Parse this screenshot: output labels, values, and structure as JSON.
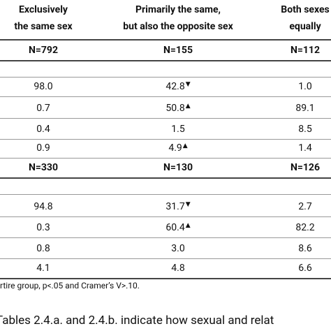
{
  "table": {
    "header": [
      [
        "Exclusively",
        "the same sex"
      ],
      [
        "Primarily the same,",
        "but also the opposite sex"
      ],
      [
        "Both sexes",
        "equally"
      ]
    ],
    "groups": [
      {
        "n": [
          "N=792",
          "N=155",
          "N=112"
        ],
        "rows": [
          [
            {
              "value": "98.0"
            },
            {
              "value": "42.8",
              "marker": "▼"
            },
            {
              "value": "1.0"
            }
          ],
          [
            {
              "value": "0.7"
            },
            {
              "value": "50.8",
              "marker": "▲"
            },
            {
              "value": "89.1"
            }
          ],
          [
            {
              "value": "0.4"
            },
            {
              "value": "1.5"
            },
            {
              "value": "8.5"
            }
          ],
          [
            {
              "value": "0.9"
            },
            {
              "value": "4.9",
              "marker": "▲"
            },
            {
              "value": "1.4"
            }
          ]
        ]
      },
      {
        "n": [
          "N=330",
          "N=130",
          "N=126"
        ],
        "rows": [
          [
            {
              "value": "94.8"
            },
            {
              "value": "31.7",
              "marker": "▼"
            },
            {
              "value": "2.7"
            }
          ],
          [
            {
              "value": "0.3"
            },
            {
              "value": "60.4",
              "marker": "▲"
            },
            {
              "value": "82.2"
            }
          ],
          [
            {
              "value": "0.8"
            },
            {
              "value": "3.0"
            },
            {
              "value": "8.6"
            }
          ],
          [
            {
              "value": "4.1"
            },
            {
              "value": "4.8"
            },
            {
              "value": "6.6"
            }
          ]
        ]
      }
    ],
    "footnote": "rtire group, p<.05 and Cramer’s V>.10."
  },
  "caption": "Tables 2.4.a. and 2.4.b. indicate how sexual and relat"
}
